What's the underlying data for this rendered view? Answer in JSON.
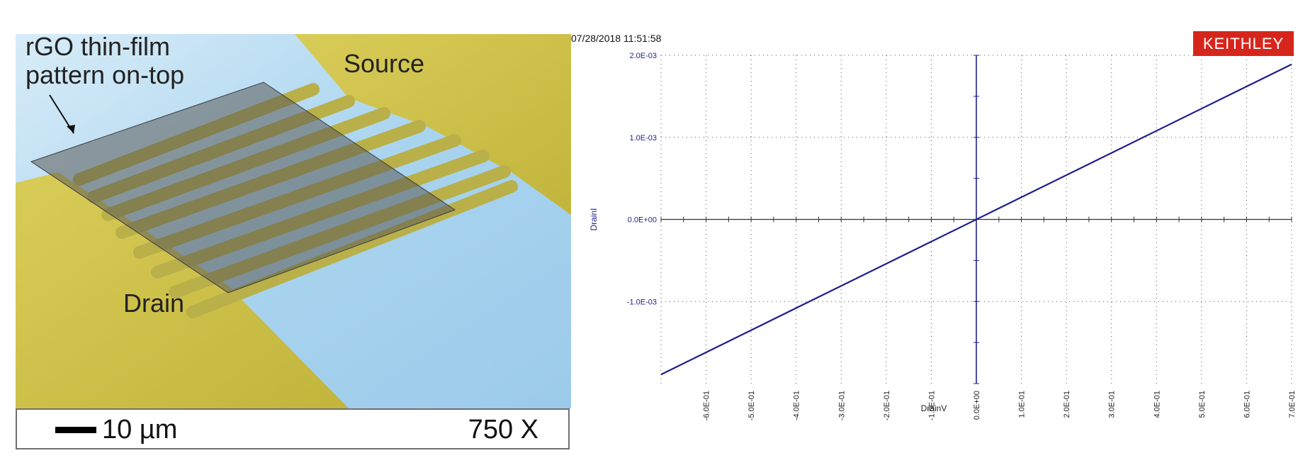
{
  "sem_image": {
    "annotation": [
      "rGO thin-film",
      "pattern on-top"
    ],
    "source_label": "Source",
    "drain_label": "Drain",
    "scale_bar_label": "10 µm",
    "magnification": "750 X"
  },
  "instrument": {
    "timestamp": "07/28/2018 11:51:58",
    "brand": "KEITHLEY"
  },
  "chart_data": {
    "type": "line",
    "xlabel": "DrainV",
    "ylabel": "DrainI",
    "xlim": [
      -0.7,
      0.7
    ],
    "ylim": [
      -0.002,
      0.002
    ],
    "x_ticks": [
      -0.6,
      -0.5,
      -0.4,
      -0.3,
      -0.2,
      -0.1,
      0.0,
      0.1,
      0.2,
      0.3,
      0.4,
      0.5,
      0.6,
      0.7
    ],
    "x_tick_labels": [
      "-6.0E-01",
      "-5.0E-01",
      "-4.0E-01",
      "-3.0E-01",
      "-2.0E-01",
      "-1.0E-01",
      "0.0E+00",
      "1.0E-01",
      "2.0E-01",
      "3.0E-01",
      "4.0E-01",
      "5.0E-01",
      "6.0E-01",
      "7.0E-01"
    ],
    "y_ticks": [
      0.002,
      0.001,
      0.0,
      -0.001
    ],
    "y_tick_labels": [
      "2.0E-03",
      "1.0E-03",
      "0.0E+00",
      "-1.0E-03"
    ],
    "grid": true,
    "series": [
      {
        "x": [
          -0.7,
          0.7
        ],
        "y": [
          -0.00189,
          0.00189
        ],
        "color": "#1f1f8f"
      }
    ]
  }
}
